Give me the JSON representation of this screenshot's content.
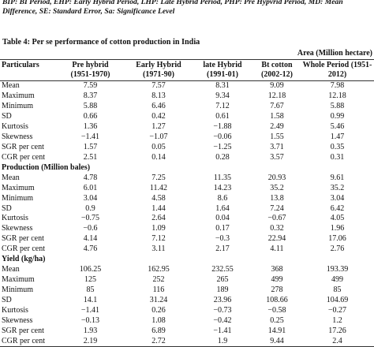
{
  "note": "BIP: BI Period, EHP: Early Hybrid Period, LHP: Late Hybrid Period, PHP: Pre Hypvrid Period, MD: Mean Difference, SE: Standard Error, Sa: Significance Level",
  "caption": "Table 4: Per se performance of cotton production in India",
  "unit_label": "Area (Million hectare)",
  "columns": [
    {
      "name": "Particulars",
      "range": ""
    },
    {
      "name": "Pre hybrid",
      "range": "(1951-1970)"
    },
    {
      "name": "Early Hybrid",
      "range": "(1971-90)"
    },
    {
      "name": "late Hybrid",
      "range": "(1991-01)"
    },
    {
      "name": "Bt cotton",
      "range": "(2002-12)"
    },
    {
      "name": "Whole Period (1951-",
      "range": "2012)"
    }
  ],
  "area_rows": [
    {
      "label": "Mean",
      "values": [
        "7.59",
        "7.57",
        "8.31",
        "9.09",
        "7.98"
      ]
    },
    {
      "label": "Maximum",
      "values": [
        "8.37",
        "8.13",
        "9.34",
        "12.18",
        "12.18"
      ]
    },
    {
      "label": "Minimum",
      "values": [
        "5.88",
        "6.46",
        "7.12",
        "7.67",
        "5.88"
      ]
    },
    {
      "label": "SD",
      "values": [
        "0.66",
        "0.42",
        "0.61",
        "1.58",
        "0.99"
      ]
    },
    {
      "label": "Kurtosis",
      "values": [
        "1.36",
        "1.27",
        "−1.88",
        "2.49",
        "5.46"
      ]
    },
    {
      "label": "Skewness",
      "values": [
        "−1.41",
        "−1.07",
        "−0.06",
        "1.55",
        "1.47"
      ]
    },
    {
      "label": "SGR per cent",
      "values": [
        "1.57",
        "0.05",
        "−1.25",
        "3.71",
        "0.35"
      ]
    },
    {
      "label": "CGR per cent",
      "values": [
        "2.51",
        "0.14",
        "0.28",
        "3.57",
        "0.31"
      ]
    }
  ],
  "production_title": "Production (Million bales)",
  "production_rows": [
    {
      "label": "Mean",
      "values": [
        "4.78",
        "7.25",
        "11.35",
        "20.93",
        "9.61"
      ]
    },
    {
      "label": "Maximum",
      "values": [
        "6.01",
        "11.42",
        "14.23",
        "35.2",
        "35.2"
      ]
    },
    {
      "label": "Minimum",
      "values": [
        "3.04",
        "4.58",
        "8.6",
        "13.8",
        "3.04"
      ]
    },
    {
      "label": "SD",
      "values": [
        "0.9",
        "1.44",
        "1.64",
        "7.24",
        "6.42"
      ]
    },
    {
      "label": "Kurtosis",
      "values": [
        "−0.75",
        "2.64",
        "0.04",
        "−0.67",
        "4.05"
      ]
    },
    {
      "label": "Skewness",
      "values": [
        "−0.6",
        "1.09",
        "0.17",
        "0.32",
        "1.96"
      ]
    },
    {
      "label": "SGR per cent",
      "values": [
        "4.14",
        "7.12",
        "−0.3",
        "22.94",
        "17.06"
      ]
    },
    {
      "label": "CGR per cent",
      "values": [
        "4.76",
        "3.11",
        "2.17",
        "4.11",
        "2.76"
      ]
    }
  ],
  "yield_title": "Yield (kg/ha)",
  "yield_rows": [
    {
      "label": "Mean",
      "values": [
        "106.25",
        "162.95",
        "232.55",
        "368",
        "193.39"
      ]
    },
    {
      "label": "Maximum",
      "values": [
        "125",
        "252",
        "265",
        "499",
        "499"
      ]
    },
    {
      "label": "Minimum",
      "values": [
        "85",
        "116",
        "189",
        "278",
        "85"
      ]
    },
    {
      "label": "SD",
      "values": [
        "14.1",
        "31.24",
        "23.96",
        "108.66",
        "104.69"
      ]
    },
    {
      "label": "Kurtosis",
      "values": [
        "−1.41",
        "0.26",
        "−0.73",
        "−0.58",
        "−0.27"
      ]
    },
    {
      "label": "Skewness",
      "values": [
        "−0.13",
        "1.08",
        "−0.42",
        "0.25",
        "1.2"
      ]
    },
    {
      "label": "SGR per cent",
      "values": [
        "1.93",
        "6.89",
        "−1.41",
        "14.91",
        "17.26"
      ]
    },
    {
      "label": "CGR per cent",
      "values": [
        "2.19",
        "2.72",
        "1.9",
        "9.44",
        "2.4"
      ]
    }
  ]
}
